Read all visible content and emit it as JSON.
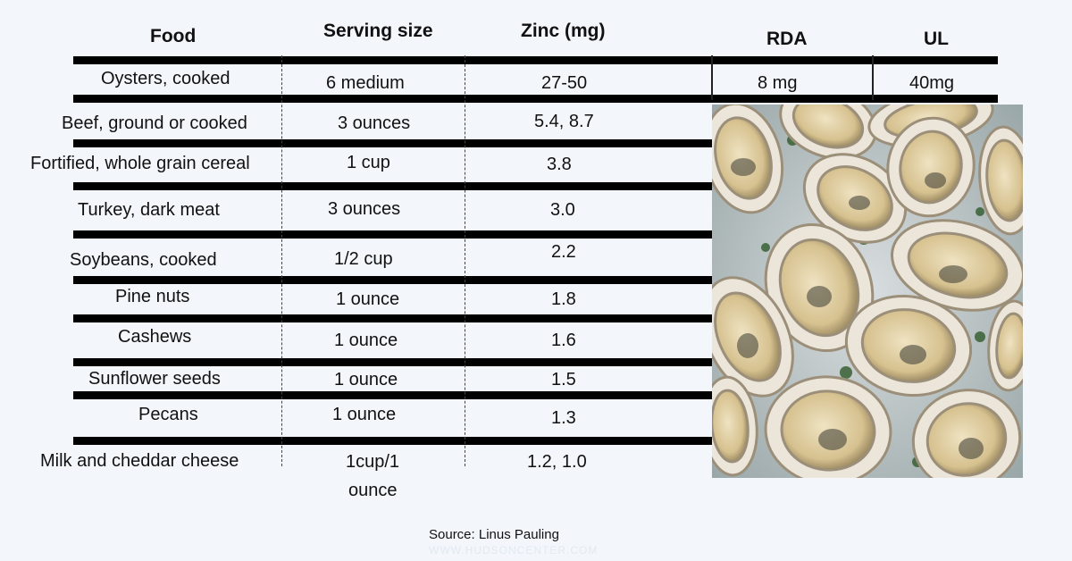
{
  "headers": {
    "food": "Food",
    "serving": "Serving size",
    "zinc": "Zinc (mg)",
    "rda": "RDA",
    "ul": "UL"
  },
  "rows": [
    {
      "food": "Oysters, cooked",
      "serving": "6 medium",
      "zinc": "27-50",
      "rda": "8 mg",
      "ul": "40mg"
    },
    {
      "food": "Beef,  ground or cooked",
      "serving": "3 ounces",
      "zinc": "5.4, 8.7"
    },
    {
      "food": "Fortified, whole grain cereal",
      "serving": "1 cup",
      "zinc": "3.8"
    },
    {
      "food": "Turkey, dark meat",
      "serving": "3 ounces",
      "zinc": "3.0"
    },
    {
      "food": "Soybeans, cooked",
      "serving": "1/2 cup",
      "zinc": "2.2"
    },
    {
      "food": "Pine nuts",
      "serving": "1 ounce",
      "zinc": "1.8"
    },
    {
      "food": "Cashews",
      "serving": "1 ounce",
      "zinc": "1.6"
    },
    {
      "food": "Sunflower seeds",
      "serving": "1 ounce",
      "zinc": "1.5"
    },
    {
      "food": "Pecans",
      "serving": "1 ounce",
      "zinc": "1.3"
    },
    {
      "food": "Milk and cheddar cheese",
      "serving_line1": "1cup/1",
      "serving_line2": "ounce",
      "zinc": "1.2, 1.0"
    }
  ],
  "source": "Source: Linus Pauling",
  "watermark": "WWW.HUDSONCENTER.COM",
  "colors": {
    "background": "#f3f7fb",
    "rule": "#000000",
    "oyster_shell": "#ece6da",
    "oyster_meat": "#d8c7a0"
  },
  "image": {
    "name": "oysters-photo"
  }
}
